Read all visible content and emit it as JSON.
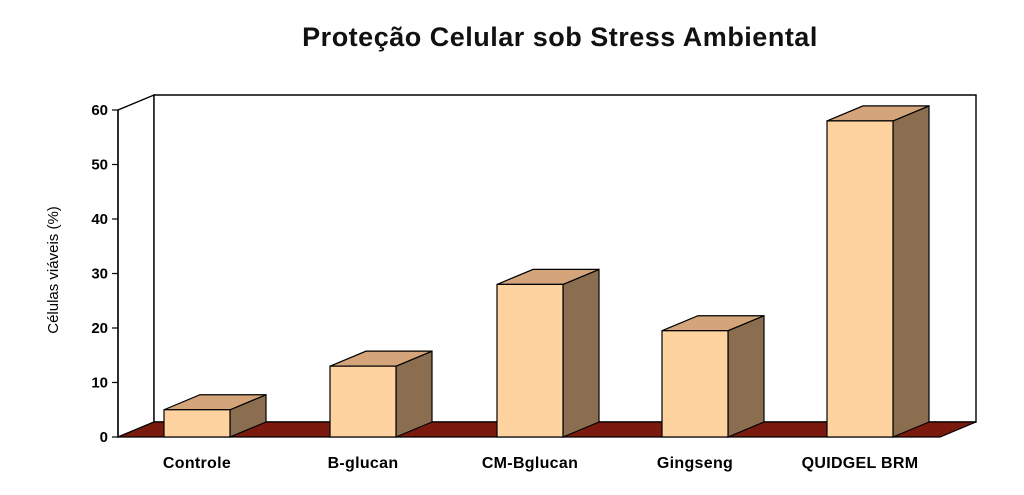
{
  "chart_data": {
    "type": "bar",
    "title": "Proteção Celular sob Stress Ambiental",
    "xlabel": "",
    "ylabel": "Células viáveis (%)",
    "categories": [
      "Controle",
      "B-glucan",
      "CM-Bglucan",
      "Gingseng",
      "QUIDGEL BRM"
    ],
    "values": [
      5,
      13,
      28,
      19.5,
      58
    ],
    "ylim": [
      0,
      60
    ],
    "yticks": [
      "0",
      "10",
      "20",
      "30",
      "40",
      "50",
      "60"
    ],
    "grid": false,
    "legend": "none",
    "colors": {
      "bar_front": "#FFD3A0",
      "bar_top": "#D4A57A",
      "bar_side": "#8B6E50",
      "floor": "#7A1A0E",
      "outline": "#000000"
    }
  }
}
